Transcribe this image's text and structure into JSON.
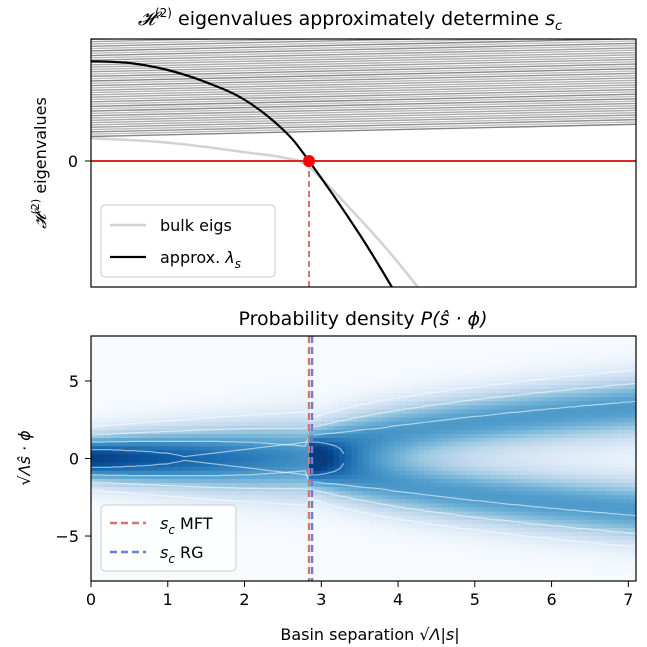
{
  "chart_data": [
    {
      "type": "line",
      "title": "𝓗⁽²⁾ eigenvalues approximately determine sc",
      "ylabel": "𝓗⁽²⁾ eigenvalues",
      "xlim": [
        0,
        7.1
      ],
      "yticks": [
        "0"
      ],
      "grid": false,
      "legend_position": "lower-left",
      "series": [
        {
          "name": "bulk eigs",
          "color": "#d3d3d3",
          "x": [
            0,
            0.5,
            1.0,
            1.5,
            2.0,
            2.5,
            2.85,
            3.5,
            4.0,
            4.5,
            5.0
          ],
          "y": [
            0.13,
            0.12,
            0.105,
            0.08,
            0.05,
            0.02,
            -0.04,
            -0.33,
            -0.58,
            -0.86,
            -1.16
          ]
        },
        {
          "name": "approx. λs",
          "color": "#000000",
          "x": [
            0,
            0.5,
            1.0,
            1.5,
            2.0,
            2.5,
            2.84,
            3.5,
            4.0,
            4.5,
            4.9
          ],
          "y": [
            0.57,
            0.56,
            0.52,
            0.45,
            0.35,
            0.18,
            0.0,
            -0.42,
            -0.78,
            -1.16,
            -1.49
          ]
        }
      ],
      "bulk_band": {
        "lower": [
          0.14,
          0.21
        ],
        "upper": [
          0.92,
          0.99
        ]
      },
      "zero_line": {
        "y": 0,
        "color": "#d62728"
      },
      "marker": {
        "x": 2.84,
        "y": 0,
        "color": "#ff0000"
      },
      "vline": {
        "x": 2.84,
        "color": "#d9736f"
      }
    },
    {
      "type": "heatmap",
      "title": "Probability density P(ŝ · ϕ)",
      "xlabel": "Basin separation √Λ|s|",
      "ylabel": "√Λ ŝ · ϕ",
      "xlim": [
        0,
        7.1
      ],
      "ylim": [
        -7.9,
        7.9
      ],
      "xticks": [
        "0",
        "1",
        "2",
        "3",
        "4",
        "5",
        "6",
        "7"
      ],
      "xtick_values": [
        0,
        1,
        2,
        3,
        4,
        5,
        6,
        7
      ],
      "yticks": [
        "5",
        "0",
        "−5"
      ],
      "ytick_values": [
        5,
        0,
        -5
      ],
      "colormap": "Blues",
      "legend_position": "lower-left",
      "vlines": [
        {
          "name": "sc MFT",
          "x": 2.84,
          "color": "#d9736f",
          "style": "dashed"
        },
        {
          "name": "sc RG",
          "x": 2.88,
          "color": "#6a7ee0",
          "style": "dashed"
        }
      ]
    }
  ],
  "legend1": {
    "bulk": "bulk eigs",
    "approx_pre": "approx. ",
    "approx_sym": "λ",
    "approx_sub": "s"
  },
  "legend2": {
    "mft_sym": "s",
    "mft_sub": "c",
    "mft_txt": " MFT",
    "rg_sym": "s",
    "rg_sub": "c",
    "rg_txt": " RG"
  },
  "text": {
    "title1_pre": "𝓗",
    "title1_sup": "(2)",
    "title1_mid": " eigenvalues approximately determine ",
    "title1_s": "s",
    "title1_c": "c",
    "ylab1_pre": "𝓗",
    "ylab1_sup": "(2)",
    "ylab1_rest": " eigenvalues",
    "title2_pre": "Probability density ",
    "title2_math": "P(ŝ · ϕ)",
    "xlab_pre": "Basin separation ",
    "xlab_math": "√Λ|s|",
    "ylab2_math": "√Λŝ · ϕ"
  }
}
